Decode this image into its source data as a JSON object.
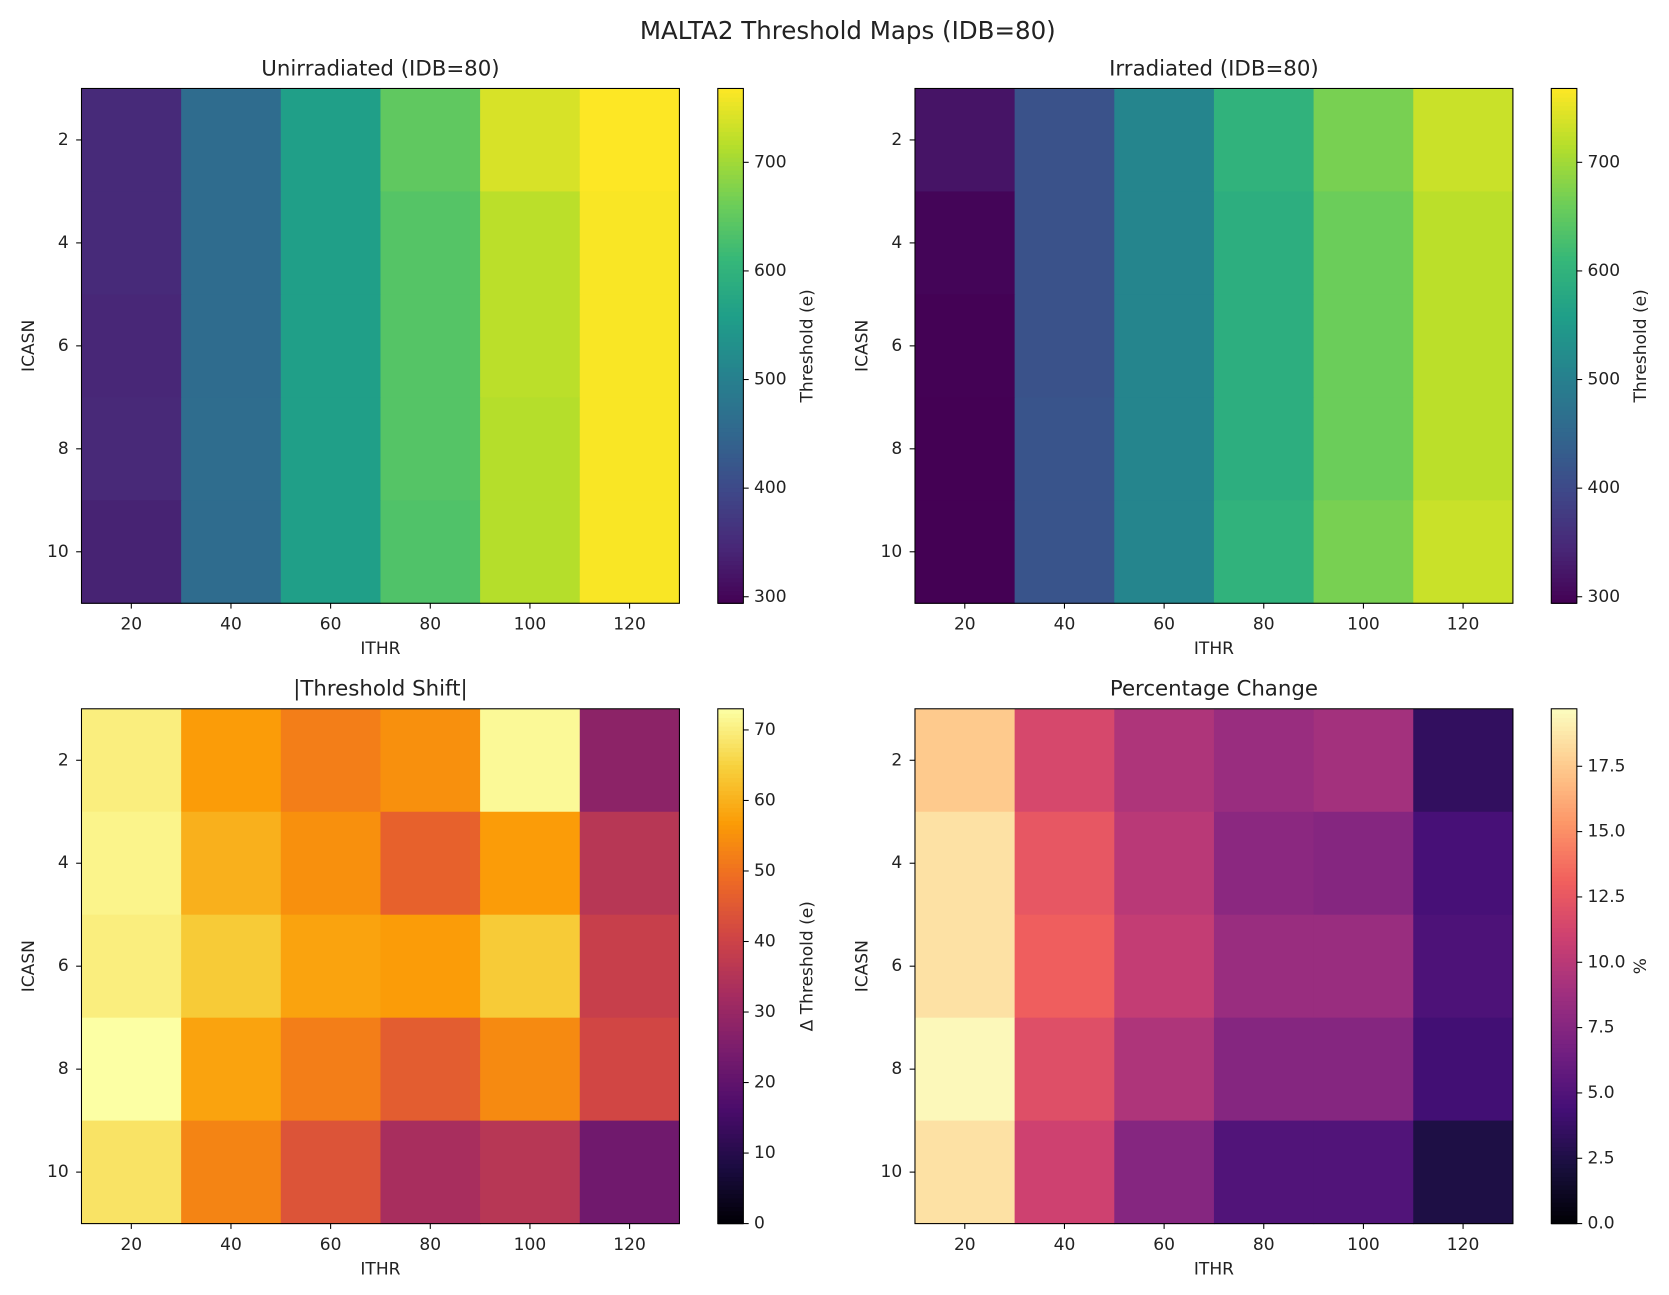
{
  "title": "MALTA2 Threshold Maps (IDB=80)",
  "chart_data": [
    {
      "type": "heatmap",
      "title": "Unirradiated (IDB=80)",
      "x_label": "ITHR",
      "y_label": "ICASN",
      "x": [
        20,
        40,
        60,
        80,
        100,
        120
      ],
      "y": [
        2,
        4,
        6,
        8,
        10
      ],
      "z": [
        [
          350,
          460,
          560,
          650,
          740,
          768
        ],
        [
          350,
          460,
          560,
          640,
          720,
          765
        ],
        [
          345,
          460,
          560,
          640,
          720,
          765
        ],
        [
          348,
          462,
          560,
          640,
          715,
          765
        ],
        [
          340,
          460,
          560,
          635,
          715,
          765
        ]
      ],
      "xlim": [
        10,
        130
      ],
      "ylim": [
        11,
        1
      ],
      "xticks": [
        20,
        40,
        60,
        80,
        100,
        120
      ],
      "yticks": [
        2,
        4,
        6,
        8,
        10
      ],
      "colormap": "viridis",
      "colorbar_label": "Threshold (e)",
      "clim": [
        294,
        768
      ],
      "cticks": [
        300,
        400,
        500,
        600,
        700
      ]
    },
    {
      "type": "heatmap",
      "title": "Irradiated (IDB=80)",
      "x_label": "ITHR",
      "y_label": "ICASN",
      "x": [
        20,
        40,
        60,
        80,
        100,
        120
      ],
      "y": [
        2,
        4,
        6,
        8,
        10
      ],
      "z": [
        [
          320,
          415,
          510,
          600,
          670,
          730
        ],
        [
          300,
          415,
          510,
          590,
          660,
          720
        ],
        [
          295,
          415,
          510,
          590,
          660,
          720
        ],
        [
          294,
          418,
          510,
          590,
          660,
          720
        ],
        [
          294,
          418,
          510,
          600,
          670,
          730
        ]
      ],
      "xlim": [
        10,
        130
      ],
      "ylim": [
        11,
        1
      ],
      "xticks": [
        20,
        40,
        60,
        80,
        100,
        120
      ],
      "yticks": [
        2,
        4,
        6,
        8,
        10
      ],
      "colormap": "viridis",
      "colorbar_label": "Threshold (e)",
      "clim": [
        294,
        768
      ],
      "cticks": [
        300,
        400,
        500,
        600,
        700
      ]
    },
    {
      "type": "heatmap",
      "title": "|Threshold Shift|",
      "x_label": "ITHR",
      "y_label": "ICASN",
      "x": [
        20,
        40,
        60,
        80,
        100,
        120
      ],
      "y": [
        2,
        4,
        6,
        8,
        10
      ],
      "z": [
        [
          70,
          57,
          52,
          55,
          72,
          28
        ],
        [
          71,
          60,
          55,
          47,
          57,
          36
        ],
        [
          70,
          64,
          58,
          57,
          64,
          39
        ],
        [
          73,
          58,
          52,
          46,
          54,
          41
        ],
        [
          68,
          53,
          44,
          33,
          36,
          23
        ]
      ],
      "xlim": [
        10,
        130
      ],
      "ylim": [
        11,
        1
      ],
      "xticks": [
        20,
        40,
        60,
        80,
        100,
        120
      ],
      "yticks": [
        2,
        4,
        6,
        8,
        10
      ],
      "colormap": "inferno",
      "colorbar_label": "Δ Threshold (e)",
      "clim": [
        0,
        73
      ],
      "cticks": [
        0,
        10,
        20,
        30,
        40,
        50,
        60,
        70
      ]
    },
    {
      "type": "heatmap",
      "title": "Percentage Change",
      "x_label": "ITHR",
      "y_label": "ICASN",
      "x": [
        20,
        40,
        60,
        80,
        100,
        120
      ],
      "y": [
        2,
        4,
        6,
        8,
        10
      ],
      "z": [
        [
          17.5,
          11.5,
          9.5,
          8.5,
          9.0,
          3.5
        ],
        [
          18.5,
          12.5,
          10,
          7.8,
          7.5,
          4.5
        ],
        [
          18.5,
          13,
          10.5,
          8.5,
          8.5,
          4.8
        ],
        [
          19.5,
          12,
          9.5,
          7.5,
          7.5,
          4.3
        ],
        [
          18.5,
          11,
          7.5,
          5,
          5,
          2.5
        ]
      ],
      "xlim": [
        10,
        130
      ],
      "ylim": [
        11,
        1
      ],
      "xticks": [
        20,
        40,
        60,
        80,
        100,
        120
      ],
      "yticks": [
        2,
        4,
        6,
        8,
        10
      ],
      "colormap": "magma",
      "colorbar_label": "%",
      "clim": [
        0,
        19.7
      ],
      "cticks": [
        {
          "value": 0,
          "label": "0.0"
        },
        2.5,
        {
          "value": 5,
          "label": "5.0"
        },
        7.5,
        {
          "value": 10,
          "label": "10.0"
        },
        12.5,
        {
          "value": 15,
          "label": "15.0"
        },
        17.5
      ]
    }
  ]
}
